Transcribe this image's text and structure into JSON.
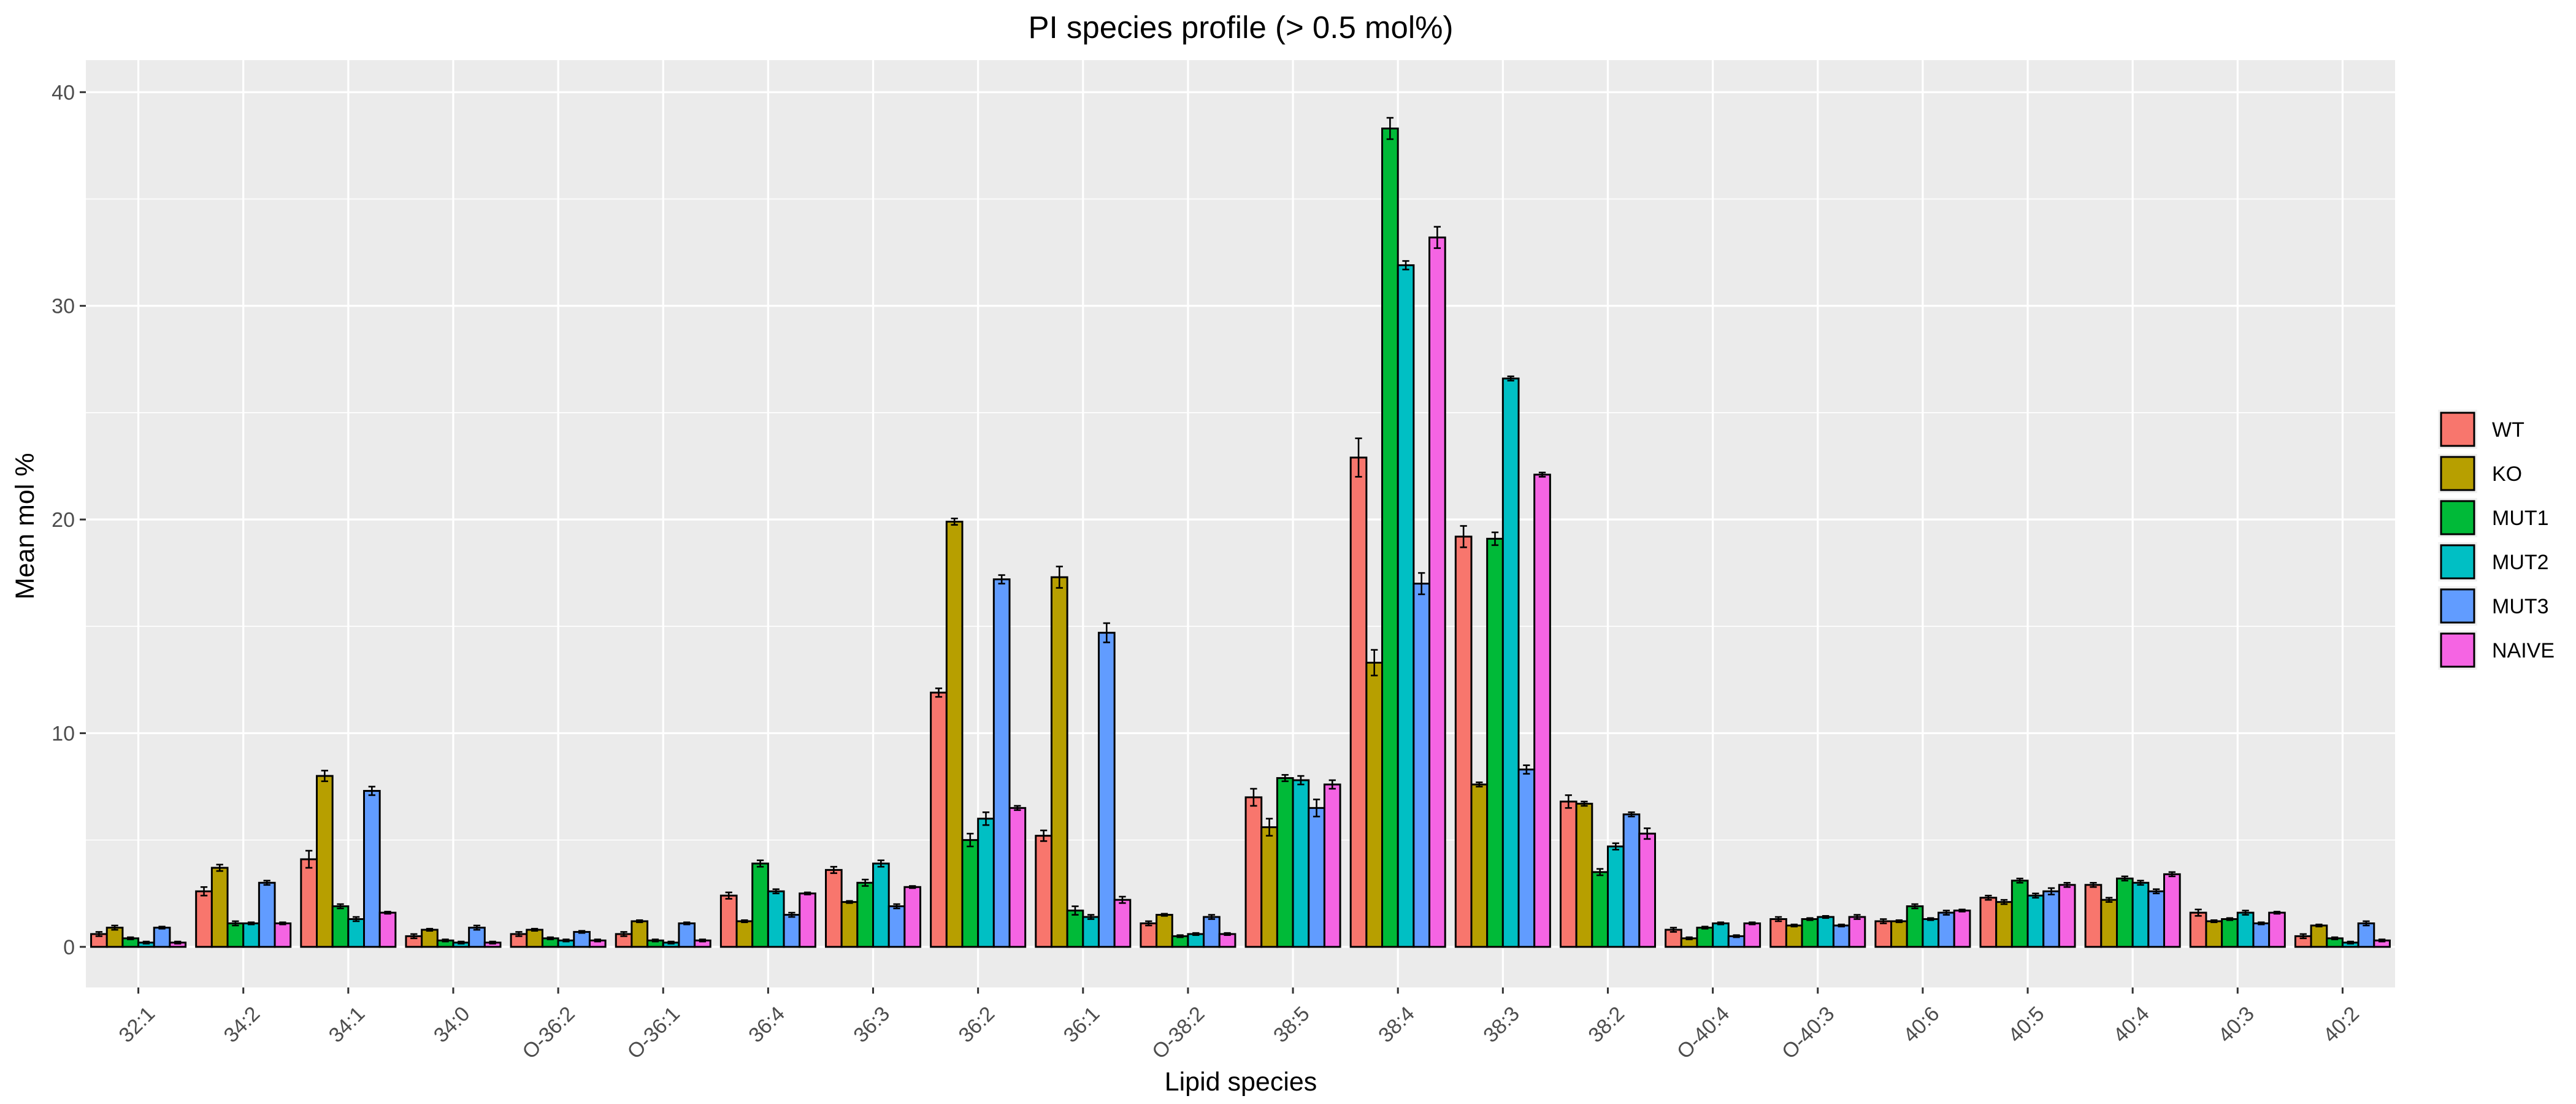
{
  "chart_data": {
    "type": "bar",
    "title": "PI species profile (> 0.5 mol%)",
    "xlabel": "Lipid species",
    "ylabel": "Mean mol %",
    "ylim": [
      -1.9,
      41.5
    ],
    "yticks": [
      0,
      10,
      20,
      30,
      40
    ],
    "grid": true,
    "legend_position": "right",
    "categories": [
      "32:1",
      "34:2",
      "34:1",
      "34:0",
      "O-36:2",
      "O-36:1",
      "36:4",
      "36:3",
      "36:2",
      "36:1",
      "O-38:2",
      "38:5",
      "38:4",
      "38:3",
      "38:2",
      "O-40:4",
      "O-40:3",
      "40:6",
      "40:5",
      "40:4",
      "40:3",
      "40:2"
    ],
    "series": [
      {
        "name": "WT",
        "color": "#F8766D",
        "values": [
          0.6,
          2.6,
          4.1,
          0.5,
          0.6,
          0.6,
          2.4,
          3.6,
          11.9,
          5.2,
          1.1,
          7.0,
          22.9,
          19.2,
          6.8,
          0.8,
          1.3,
          1.2,
          2.3,
          2.9,
          1.6,
          0.5
        ],
        "errors": [
          0.1,
          0.2,
          0.4,
          0.1,
          0.1,
          0.1,
          0.15,
          0.15,
          0.2,
          0.25,
          0.1,
          0.4,
          0.9,
          0.5,
          0.3,
          0.1,
          0.1,
          0.1,
          0.1,
          0.1,
          0.15,
          0.1
        ]
      },
      {
        "name": "KO",
        "color": "#B79F00",
        "values": [
          0.9,
          3.7,
          8.0,
          0.8,
          0.8,
          1.2,
          1.2,
          2.1,
          19.9,
          17.3,
          1.5,
          5.6,
          13.3,
          7.6,
          6.7,
          0.4,
          1.0,
          1.2,
          2.1,
          2.2,
          1.2,
          1.0
        ],
        "errors": [
          0.1,
          0.15,
          0.25,
          0.05,
          0.05,
          0.05,
          0.05,
          0.05,
          0.15,
          0.5,
          0.05,
          0.4,
          0.6,
          0.1,
          0.1,
          0.05,
          0.05,
          0.05,
          0.1,
          0.1,
          0.05,
          0.05
        ]
      },
      {
        "name": "MUT1",
        "color": "#00BA38",
        "values": [
          0.4,
          1.1,
          1.9,
          0.3,
          0.4,
          0.3,
          3.9,
          3.0,
          5.0,
          1.7,
          0.5,
          7.9,
          38.3,
          19.1,
          3.5,
          0.9,
          1.3,
          1.9,
          3.1,
          3.2,
          1.3,
          0.4
        ],
        "errors": [
          0.05,
          0.1,
          0.1,
          0.05,
          0.05,
          0.05,
          0.15,
          0.15,
          0.3,
          0.2,
          0.05,
          0.15,
          0.5,
          0.3,
          0.15,
          0.05,
          0.05,
          0.1,
          0.1,
          0.1,
          0.05,
          0.05
        ]
      },
      {
        "name": "MUT2",
        "color": "#00BFC4",
        "values": [
          0.2,
          1.1,
          1.3,
          0.2,
          0.3,
          0.2,
          2.6,
          3.9,
          6.0,
          1.4,
          0.6,
          7.8,
          31.9,
          26.6,
          4.7,
          1.1,
          1.4,
          1.3,
          2.4,
          3.0,
          1.6,
          0.2
        ],
        "errors": [
          0.05,
          0.05,
          0.1,
          0.05,
          0.05,
          0.05,
          0.1,
          0.15,
          0.3,
          0.1,
          0.05,
          0.2,
          0.2,
          0.1,
          0.15,
          0.05,
          0.05,
          0.05,
          0.1,
          0.1,
          0.1,
          0.05
        ]
      },
      {
        "name": "MUT3",
        "color": "#619CFF",
        "values": [
          0.9,
          3.0,
          7.3,
          0.9,
          0.7,
          1.1,
          1.5,
          1.9,
          17.2,
          14.7,
          1.4,
          6.5,
          17.0,
          8.3,
          6.2,
          0.5,
          1.0,
          1.6,
          2.6,
          2.6,
          1.1,
          1.1
        ],
        "errors": [
          0.05,
          0.1,
          0.2,
          0.1,
          0.05,
          0.05,
          0.1,
          0.1,
          0.2,
          0.45,
          0.1,
          0.4,
          0.5,
          0.2,
          0.1,
          0.05,
          0.05,
          0.1,
          0.15,
          0.1,
          0.05,
          0.1
        ]
      },
      {
        "name": "NAIVE",
        "color": "#F564E3",
        "values": [
          0.2,
          1.1,
          1.6,
          0.2,
          0.3,
          0.3,
          2.5,
          2.8,
          6.5,
          2.2,
          0.6,
          7.6,
          33.2,
          22.1,
          5.3,
          1.1,
          1.4,
          1.7,
          2.9,
          3.4,
          1.6,
          0.3
        ],
        "errors": [
          0.05,
          0.05,
          0.05,
          0.05,
          0.05,
          0.05,
          0.05,
          0.05,
          0.1,
          0.15,
          0.05,
          0.2,
          0.5,
          0.1,
          0.25,
          0.05,
          0.1,
          0.05,
          0.1,
          0.1,
          0.05,
          0.05
        ]
      }
    ]
  }
}
